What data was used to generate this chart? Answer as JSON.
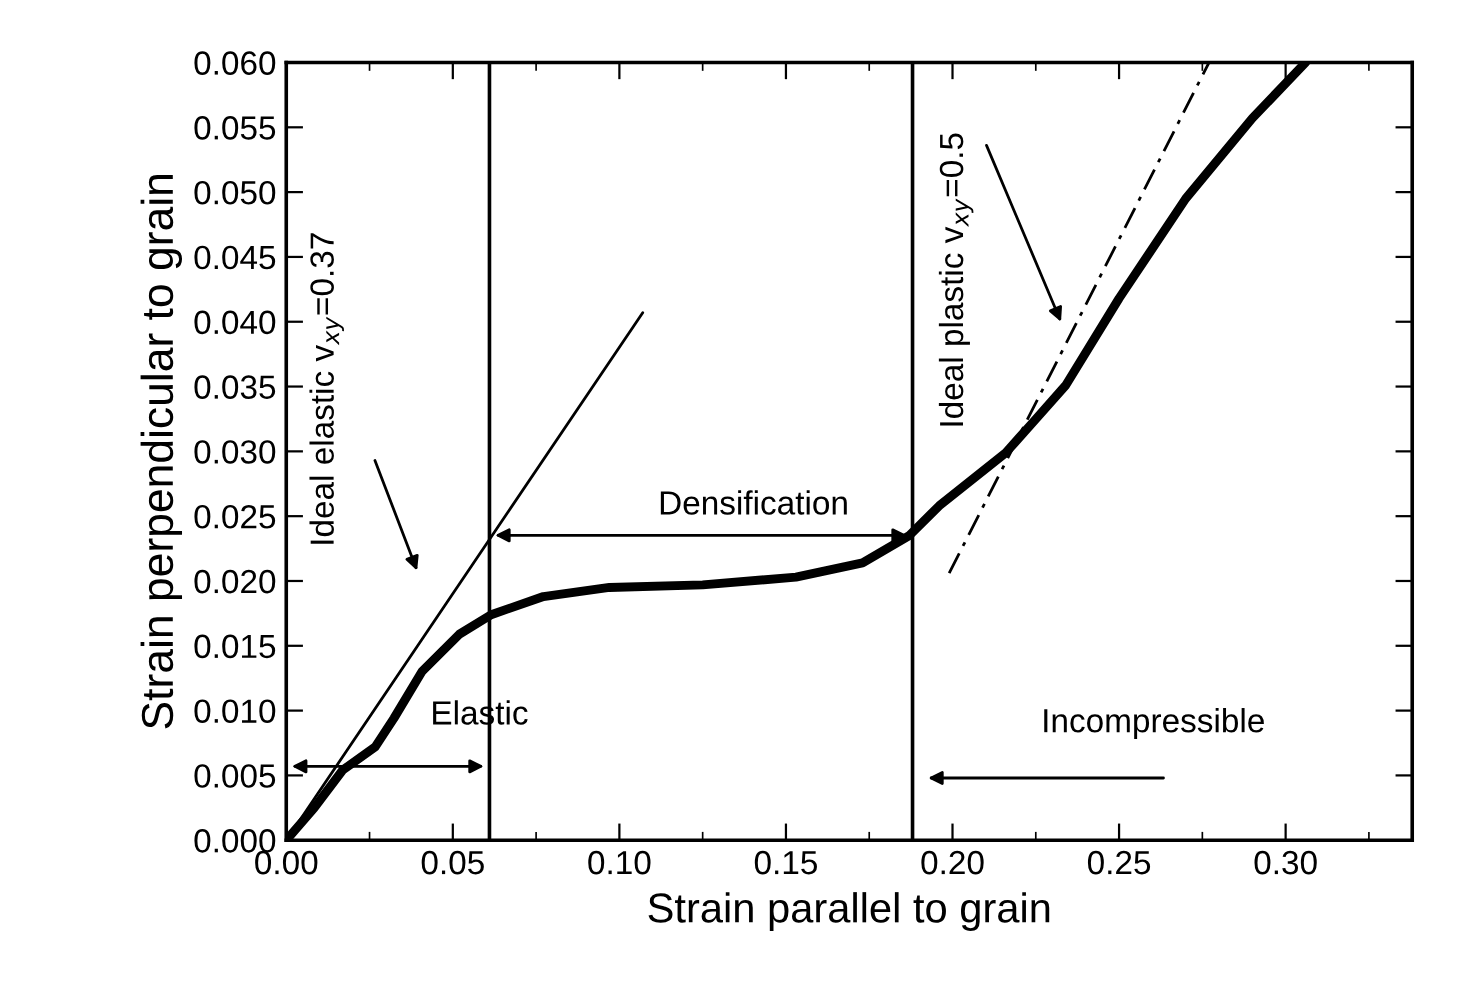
{
  "chart_data": {
    "type": "line",
    "xlabel": "Strain parallel to grain",
    "ylabel": "Strain perpendicular to grain",
    "xlim": [
      0,
      0.338
    ],
    "ylim": [
      0,
      0.06
    ],
    "xticks": [
      {
        "value": 0,
        "label": "0.00"
      },
      {
        "value": 0.05,
        "label": "0.05"
      },
      {
        "value": 0.1,
        "label": "0.10"
      },
      {
        "value": 0.15,
        "label": "0.15"
      },
      {
        "value": 0.2,
        "label": "0.20"
      },
      {
        "value": 0.25,
        "label": "0.25"
      },
      {
        "value": 0.3,
        "label": "0.30"
      }
    ],
    "yticks": [
      {
        "value": 0,
        "label": "0.000"
      },
      {
        "value": 0.005,
        "label": "0.005"
      },
      {
        "value": 0.01,
        "label": "0.010"
      },
      {
        "value": 0.015,
        "label": "0.015"
      },
      {
        "value": 0.02,
        "label": "0.020"
      },
      {
        "value": 0.025,
        "label": "0.025"
      },
      {
        "value": 0.03,
        "label": "0.030"
      },
      {
        "value": 0.035,
        "label": "0.035"
      },
      {
        "value": 0.04,
        "label": "0.040"
      },
      {
        "value": 0.045,
        "label": "0.045"
      },
      {
        "value": 0.05,
        "label": "0.050"
      },
      {
        "value": 0.055,
        "label": "0.055"
      },
      {
        "value": 0.06,
        "label": "0.060"
      }
    ],
    "grid": false,
    "legend": false,
    "marker": "none",
    "series": [
      {
        "color": "#000000",
        "line_style": "solid",
        "x": [
          0,
          0.0084,
          0.0169,
          0.0267,
          0.0323,
          0.0407,
          0.052,
          0.0615,
          0.0772,
          0.097,
          0.125,
          0.153,
          0.173,
          0.187,
          0.196,
          0.216,
          0.224,
          0.234,
          0.25,
          0.27,
          0.29,
          0.306
        ],
        "values": [
          0,
          0.0025,
          0.0054,
          0.0072,
          0.0094,
          0.013,
          0.0159,
          0.0174,
          0.0188,
          0.0195,
          0.0197,
          0.0203,
          0.0214,
          0.0235,
          0.0258,
          0.0299,
          0.0322,
          0.0351,
          0.0418,
          0.0495,
          0.0557,
          0.06
        ]
      },
      {
        "color": "#000000",
        "line_style": "solid",
        "x": [
          0,
          0.107
        ],
        "values": [
          0,
          0.0407
        ]
      },
      {
        "color": "#000000",
        "line_style": "dashed",
        "x": [
          0.199,
          0.277
        ],
        "values": [
          0.0206,
          0.06
        ]
      }
    ],
    "ref_lines": [
      {
        "axis": "x",
        "value": 0.061,
        "color": "#000000"
      },
      {
        "axis": "x",
        "value": 0.188,
        "color": "#000000"
      }
    ],
    "annotations": [
      "Ideal elastic v$_{xy}$=0.37",
      "Densification",
      "Ideal plastic v$_{xy}$=0.5",
      "Elastic",
      "Incompressible"
    ]
  }
}
